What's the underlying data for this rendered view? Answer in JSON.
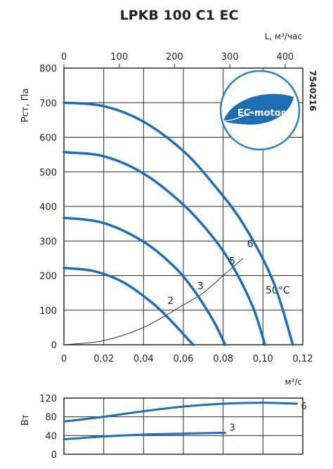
{
  "chart_data": [
    {
      "type": "line",
      "title": "LPKB 100 C1 EC",
      "product_code": "7540216",
      "badge_text": "EC-motor",
      "xlabel": "м³/с",
      "x2label": "L, м³/час",
      "ylabel": "Рст, Па",
      "xlim": [
        0,
        0.12
      ],
      "ylim": [
        0,
        800
      ],
      "x2lim": [
        0,
        432
      ],
      "xticks": [
        0,
        0.02,
        0.04,
        0.06,
        0.08,
        0.1,
        0.12
      ],
      "xtick_labels": [
        "0",
        "0,02",
        "0,04",
        "0,06",
        "0,08",
        "0,10",
        "0,12"
      ],
      "x2ticks": [
        0,
        100,
        200,
        300,
        400
      ],
      "x2tick_labels": [
        "0",
        "100",
        "200",
        "300",
        "400"
      ],
      "yticks": [
        0,
        100,
        200,
        300,
        400,
        500,
        600,
        700,
        800
      ],
      "ytick_labels": [
        "0",
        "100",
        "200",
        "300",
        "400",
        "500",
        "600",
        "700",
        "800"
      ],
      "grid": true,
      "color": "#1f6db5",
      "temperature_label": "50°C",
      "series": [
        {
          "name": "2",
          "x": [
            0,
            0.015,
            0.03,
            0.045,
            0.055,
            0.062,
            0.065
          ],
          "y": [
            222,
            213,
            180,
            118,
            62,
            18,
            0
          ]
        },
        {
          "name": "3",
          "x": [
            0,
            0.02,
            0.04,
            0.055,
            0.065,
            0.075,
            0.081
          ],
          "y": [
            367,
            352,
            298,
            228,
            160,
            70,
            0
          ]
        },
        {
          "name": "5",
          "x": [
            0,
            0.02,
            0.04,
            0.06,
            0.075,
            0.085,
            0.095,
            0.101
          ],
          "y": [
            557,
            545,
            495,
            405,
            310,
            225,
            108,
            0
          ]
        },
        {
          "name": "6",
          "x": [
            0,
            0.02,
            0.04,
            0.06,
            0.075,
            0.09,
            0.105,
            0.115
          ],
          "y": [
            700,
            690,
            645,
            560,
            465,
            350,
            185,
            0
          ]
        }
      ],
      "system_curve": {
        "x": [
          0,
          0.02,
          0.04,
          0.06,
          0.07,
          0.08,
          0.09
        ],
        "y": [
          0,
          12,
          50,
          115,
          150,
          200,
          250
        ]
      },
      "curve_labels": [
        {
          "text": "2",
          "x": 0.052,
          "y": 118
        },
        {
          "text": "3",
          "x": 0.067,
          "y": 160
        },
        {
          "text": "5",
          "x": 0.083,
          "y": 232
        },
        {
          "text": "6",
          "x": 0.092,
          "y": 282
        }
      ]
    },
    {
      "type": "line",
      "ylabel": "Вт",
      "xlim": [
        0,
        0.12
      ],
      "ylim": [
        0,
        120
      ],
      "yticks": [
        0,
        40,
        80,
        120
      ],
      "ytick_labels": [
        "0",
        "40",
        "80",
        "120"
      ],
      "grid": true,
      "color": "#1f6db5",
      "series": [
        {
          "name": "6",
          "x": [
            0,
            0.02,
            0.04,
            0.06,
            0.08,
            0.1,
            0.117
          ],
          "y": [
            70,
            80,
            92,
            102,
            108,
            110,
            108
          ]
        },
        {
          "name": "3",
          "x": [
            0,
            0.02,
            0.04,
            0.06,
            0.081
          ],
          "y": [
            32,
            38,
            42,
            44,
            46
          ]
        }
      ]
    }
  ]
}
